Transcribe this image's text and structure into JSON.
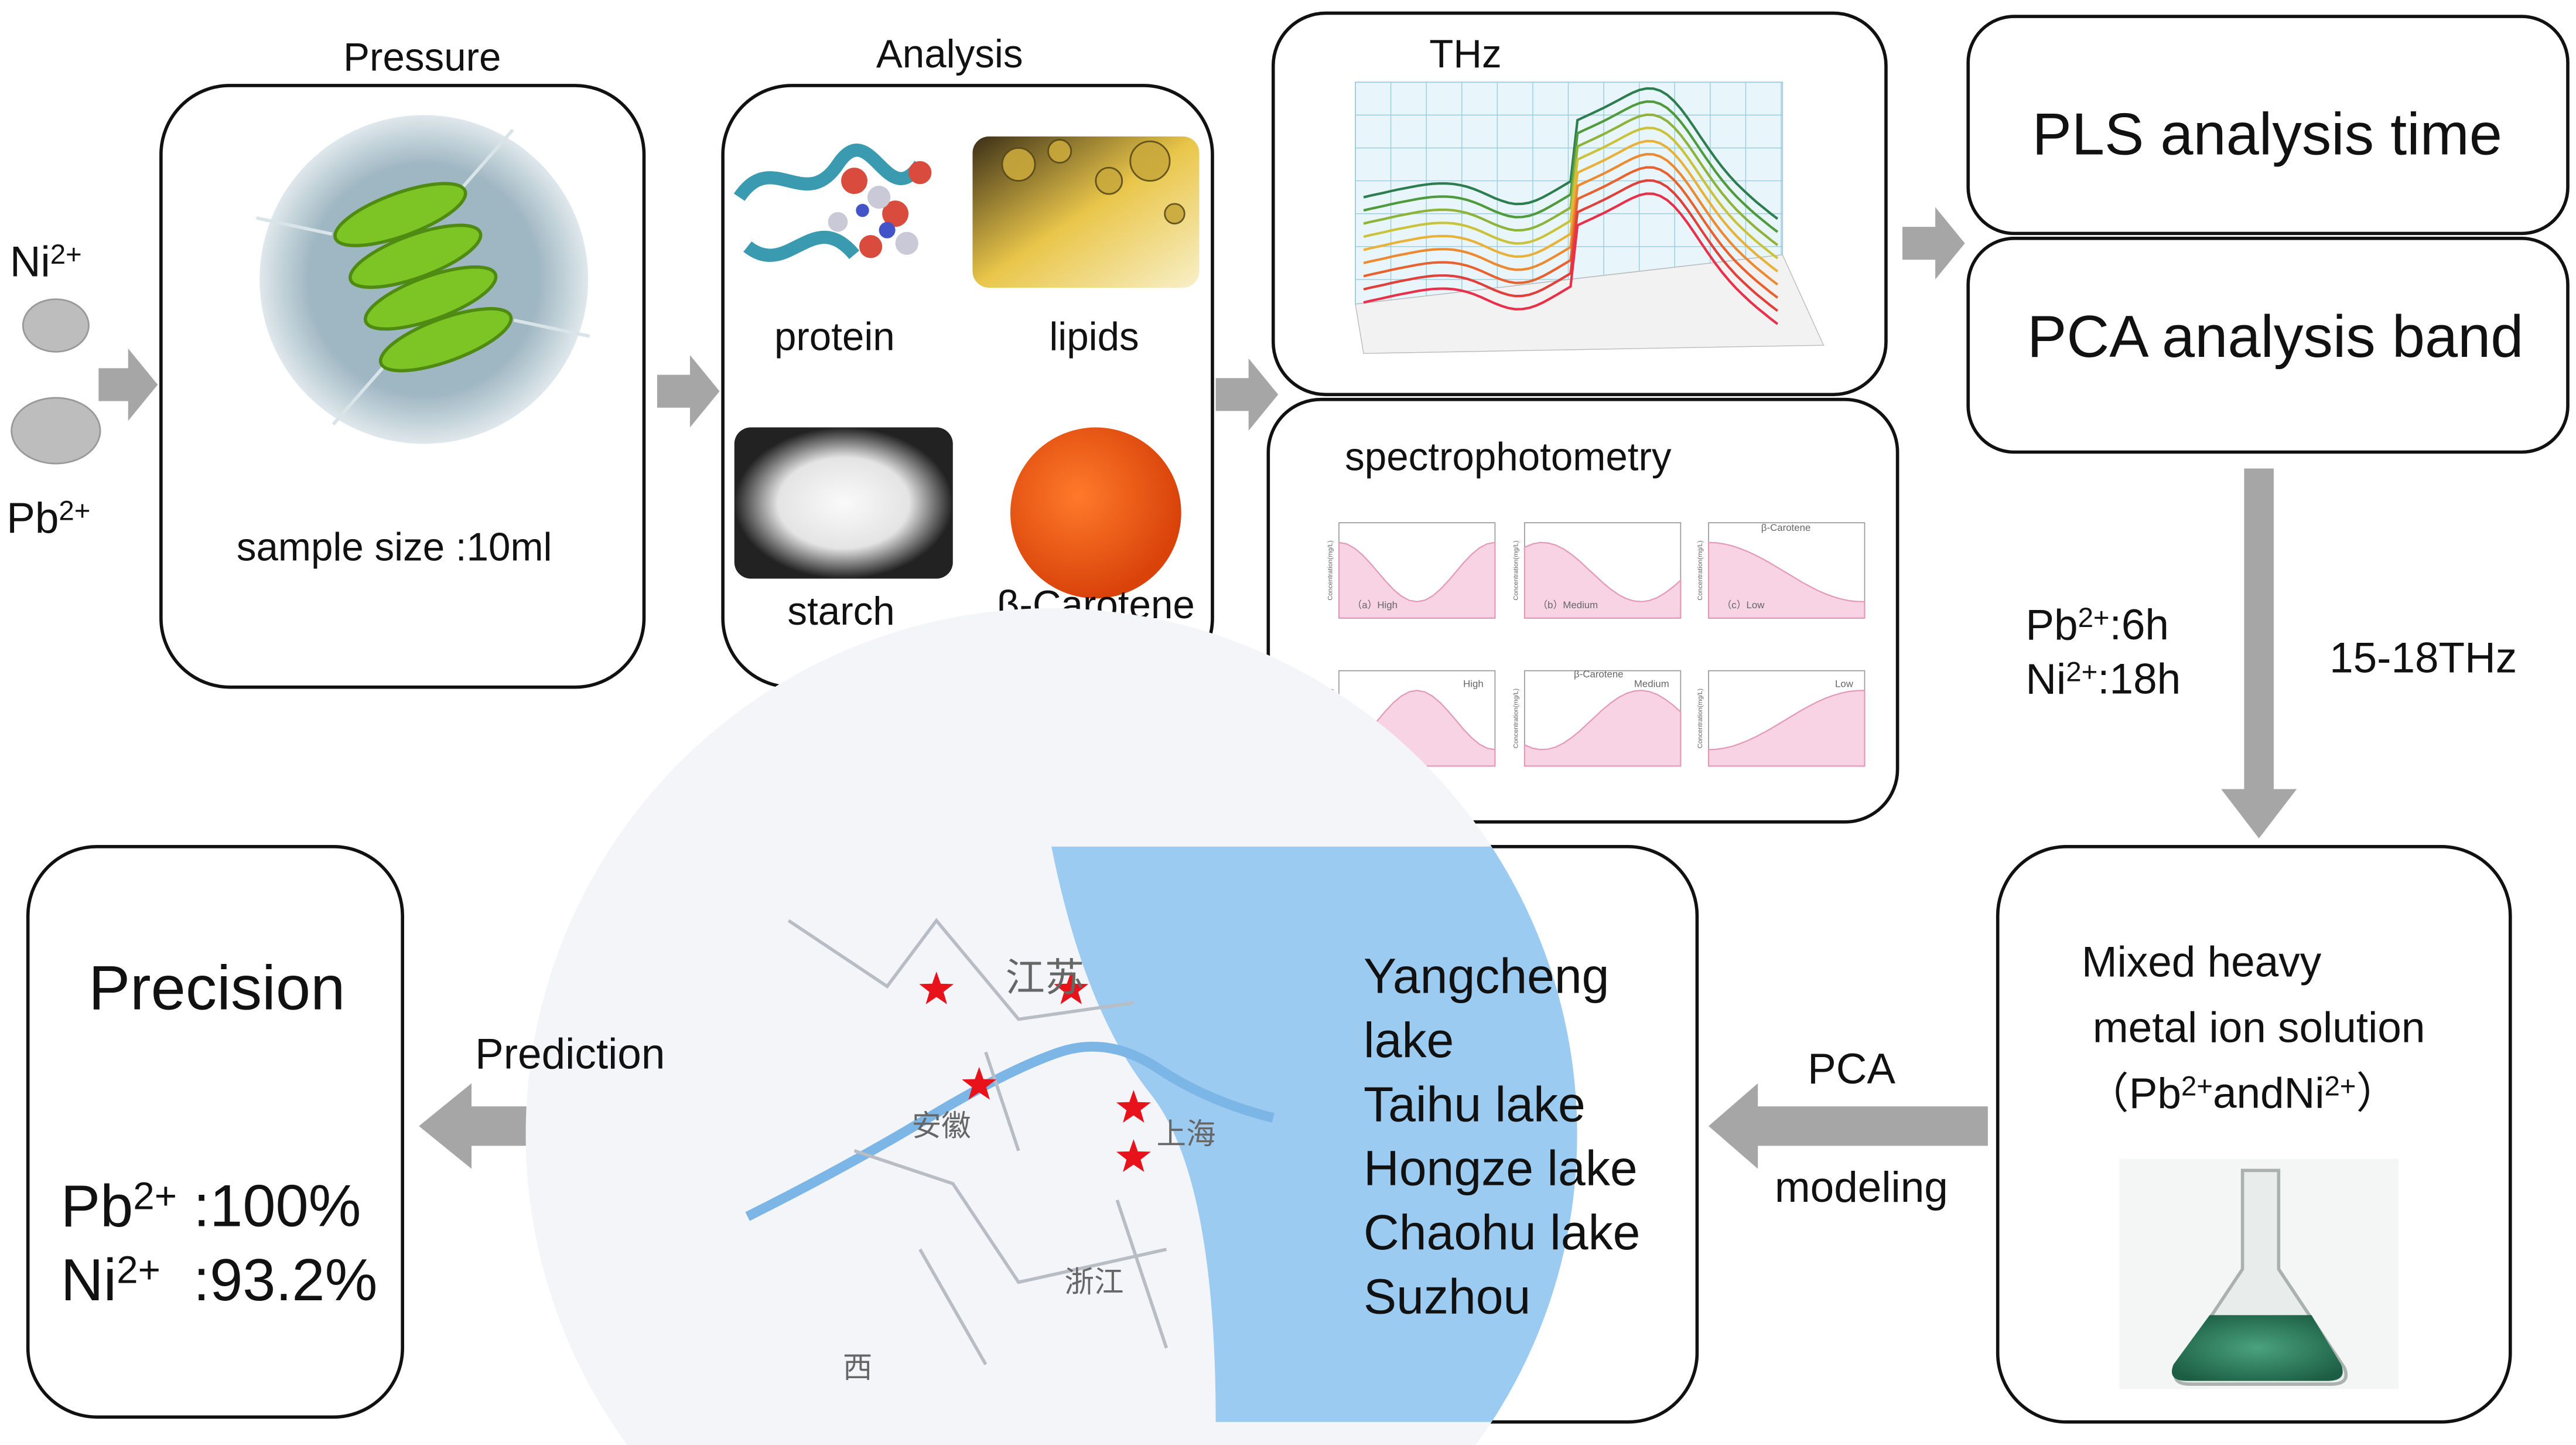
{
  "inputs": {
    "ions": [
      [
        "Ni",
        "2+"
      ],
      [
        "Pb",
        "2+"
      ]
    ]
  },
  "pressure": {
    "title": "Pressure",
    "sample": "sample size :10ml"
  },
  "analysis": {
    "title": "Analysis",
    "items": [
      "protein",
      "lipids",
      "starch",
      "β-Carotene"
    ]
  },
  "thz": {
    "title": "THz"
  },
  "spectro": {
    "title": "spectrophotometry",
    "panels": [
      "（a）High",
      "（b）Medium",
      "（c）Low",
      "High",
      "Medium",
      "Low"
    ],
    "legend": "β-Carotene",
    "axis": "Concentration(mg/L)"
  },
  "models": {
    "pls": "PLS analysis time",
    "pca": "PCA analysis band"
  },
  "conditions": {
    "times": [
      [
        "Pb",
        "2+",
        ":6h"
      ],
      [
        "Ni",
        "2+",
        ":18h"
      ]
    ],
    "band": "15-18THz"
  },
  "solution": {
    "lines": [
      "Mixed heavy",
      "metal ion solution"
    ],
    "ions": [
      "（Pb",
      "2+",
      "andNi",
      "2+",
      "）"
    ]
  },
  "modeling": {
    "top": "PCA",
    "bottom": "modeling"
  },
  "map": {
    "places": [
      "江苏",
      "安徽",
      "上海",
      "浙江",
      "西"
    ],
    "lakes": [
      "Yangcheng",
      "lake",
      "Taihu lake",
      "Hongze lake",
      "Chaohu lake",
      "Suzhou"
    ]
  },
  "prediction": "Prediction",
  "precision": {
    "title": "Precision",
    "results": [
      [
        "Pb",
        "2+",
        " :100%"
      ],
      [
        "Ni",
        "2+",
        "  :93.2%"
      ]
    ]
  }
}
